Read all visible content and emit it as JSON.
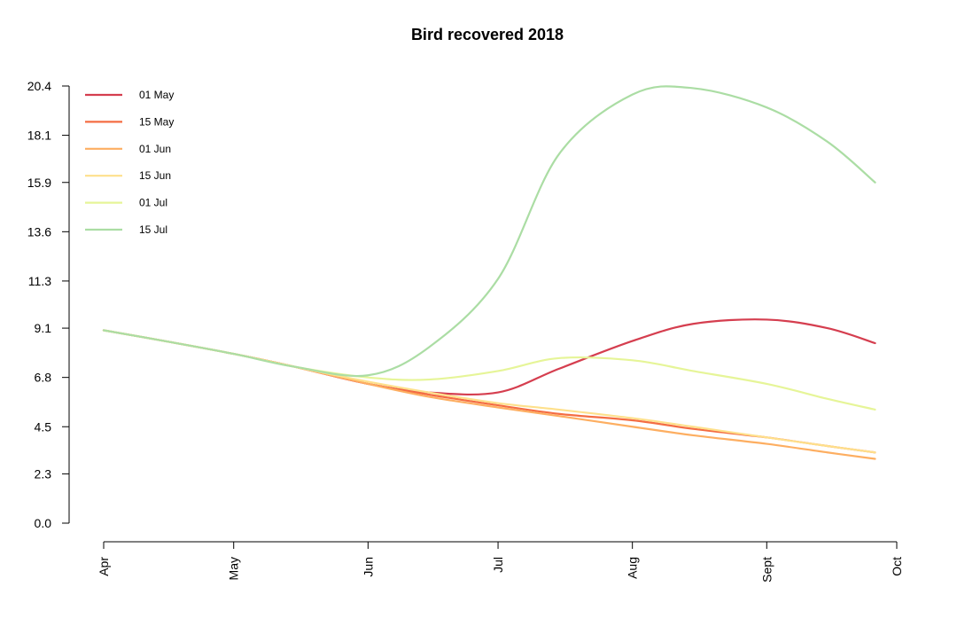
{
  "chart_data": {
    "type": "line",
    "title": "Bird recovered 2018",
    "xlabel": "",
    "ylabel": "",
    "x_ticks": [
      "Apr",
      "May",
      "Jun",
      "Jul",
      "Aug",
      "Sept",
      "Oct"
    ],
    "x_tick_dates": [
      "2018-04-01",
      "2018-05-01",
      "2018-06-01",
      "2018-07-01",
      "2018-08-01",
      "2018-09-01",
      "2018-10-01"
    ],
    "xlim": [
      "2018-04-01",
      "2018-10-01"
    ],
    "y_ticks": [
      "0.0",
      "2.3",
      "4.5",
      "6.8",
      "9.1",
      "11.3",
      "13.6",
      "15.9",
      "18.1",
      "20.4"
    ],
    "ylim": [
      0,
      20.4
    ],
    "grid": false,
    "legend_position": "top-left",
    "x": [
      "2018-04-01",
      "2018-04-15",
      "2018-05-01",
      "2018-05-15",
      "2018-06-01",
      "2018-06-15",
      "2018-07-01",
      "2018-07-15",
      "2018-08-01",
      "2018-08-15",
      "2018-09-01",
      "2018-09-15",
      "2018-09-26"
    ],
    "series": [
      {
        "name": "01 May",
        "color": "#d53e4f",
        "values": [
          9.0,
          8.5,
          7.9,
          7.3,
          6.5,
          6.1,
          6.1,
          7.2,
          8.5,
          9.3,
          9.5,
          9.1,
          8.4
        ]
      },
      {
        "name": "15 May",
        "color": "#f46d43",
        "values": [
          9.0,
          8.5,
          7.9,
          7.3,
          6.5,
          6.0,
          5.5,
          5.1,
          4.8,
          4.4,
          4.0,
          3.6,
          3.3
        ]
      },
      {
        "name": "01 Jun",
        "color": "#fdae61",
        "values": [
          9.0,
          8.5,
          7.9,
          7.3,
          6.5,
          5.9,
          5.4,
          5.0,
          4.5,
          4.1,
          3.7,
          3.3,
          3.0
        ]
      },
      {
        "name": "15 Jun",
        "color": "#fee08b",
        "values": [
          9.0,
          8.5,
          7.9,
          7.3,
          6.6,
          6.1,
          5.6,
          5.3,
          4.9,
          4.5,
          4.0,
          3.6,
          3.3
        ]
      },
      {
        "name": "01 Jul",
        "color": "#e6f598",
        "values": [
          9.0,
          8.5,
          7.9,
          7.3,
          6.8,
          6.7,
          7.1,
          7.7,
          7.6,
          7.1,
          6.5,
          5.8,
          5.3
        ]
      },
      {
        "name": "15 Jul",
        "color": "#abdda4",
        "values": [
          9.0,
          8.5,
          7.9,
          7.3,
          6.9,
          8.2,
          11.4,
          17.2,
          20.0,
          20.3,
          19.4,
          17.8,
          15.9
        ]
      }
    ]
  }
}
